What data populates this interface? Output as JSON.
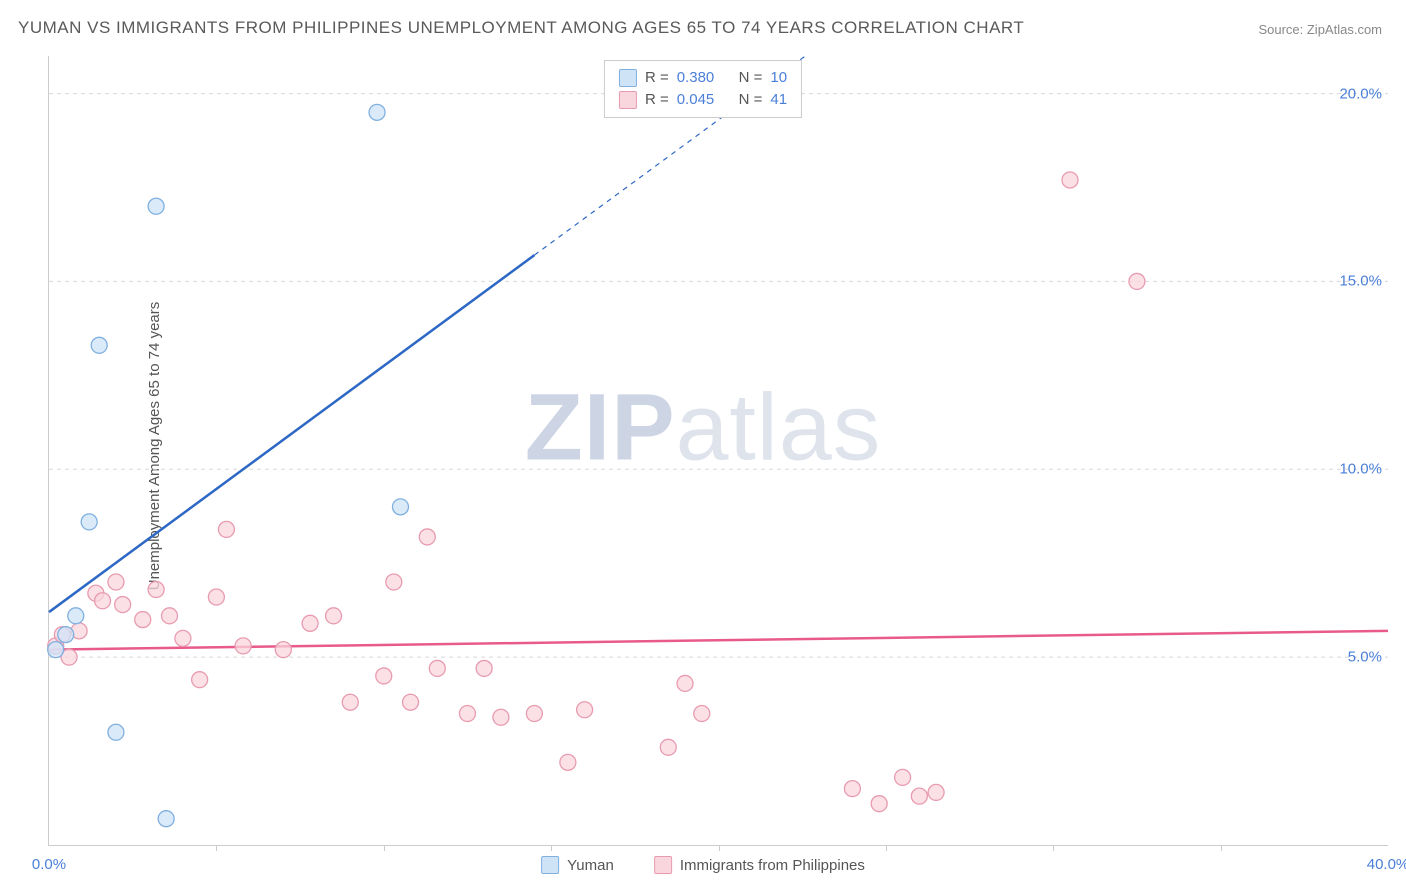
{
  "title": "YUMAN VS IMMIGRANTS FROM PHILIPPINES UNEMPLOYMENT AMONG AGES 65 TO 74 YEARS CORRELATION CHART",
  "source": "Source: ZipAtlas.com",
  "ylabel": "Unemployment Among Ages 65 to 74 years",
  "watermark_a": "ZIP",
  "watermark_b": "atlas",
  "chart": {
    "type": "scatter-with-regression",
    "xlim": [
      0,
      40
    ],
    "ylim": [
      0,
      21
    ],
    "xtick_major": [
      0,
      40
    ],
    "xtick_minor": [
      5,
      10,
      15,
      20,
      25,
      30,
      35
    ],
    "ytick_major": [
      5,
      10,
      15,
      20
    ],
    "ytick_format_suffix": ".0%",
    "grid_dash": "4,4",
    "grid_color": "#d8d8d8",
    "axis_color": "#cccccc",
    "background_color": "#ffffff",
    "tick_label_color": "#4a7fd8",
    "marker_radius": 8
  },
  "series": {
    "a": {
      "label": "Yuman",
      "fill": "#cfe3f7",
      "stroke": "#7fb0e0",
      "line_color": "#2d68c4",
      "R": "0.380",
      "N": "10",
      "regression": {
        "x1": 0,
        "y1": 6.2,
        "x2": 14.5,
        "y2": 15.7,
        "x3": 40,
        "y3": 32.4
      },
      "points": [
        {
          "x": 0.2,
          "y": 5.2
        },
        {
          "x": 0.5,
          "y": 5.6
        },
        {
          "x": 0.8,
          "y": 6.1
        },
        {
          "x": 1.2,
          "y": 8.6
        },
        {
          "x": 1.5,
          "y": 13.3
        },
        {
          "x": 2.0,
          "y": 3.0
        },
        {
          "x": 3.2,
          "y": 17.0
        },
        {
          "x": 3.5,
          "y": 0.7
        },
        {
          "x": 9.8,
          "y": 19.5
        },
        {
          "x": 10.5,
          "y": 9.0
        }
      ]
    },
    "b": {
      "label": "Immigrants from Philippines",
      "fill": "#f9d5dd",
      "stroke": "#e89bb0",
      "line_color": "#e85a8c",
      "R": "0.045",
      "N": "41",
      "regression": {
        "x1": 0,
        "y1": 5.2,
        "x2": 40,
        "y2": 5.7
      },
      "points": [
        {
          "x": 0.2,
          "y": 5.3
        },
        {
          "x": 0.4,
          "y": 5.6
        },
        {
          "x": 0.6,
          "y": 5.0
        },
        {
          "x": 0.9,
          "y": 5.7
        },
        {
          "x": 1.4,
          "y": 6.7
        },
        {
          "x": 1.6,
          "y": 6.5
        },
        {
          "x": 2.0,
          "y": 7.0
        },
        {
          "x": 2.2,
          "y": 6.4
        },
        {
          "x": 2.8,
          "y": 6.0
        },
        {
          "x": 3.2,
          "y": 6.8
        },
        {
          "x": 3.6,
          "y": 6.1
        },
        {
          "x": 4.0,
          "y": 5.5
        },
        {
          "x": 4.5,
          "y": 4.4
        },
        {
          "x": 5.0,
          "y": 6.6
        },
        {
          "x": 5.3,
          "y": 8.4
        },
        {
          "x": 5.8,
          "y": 5.3
        },
        {
          "x": 7.0,
          "y": 5.2
        },
        {
          "x": 7.8,
          "y": 5.9
        },
        {
          "x": 8.5,
          "y": 6.1
        },
        {
          "x": 9.0,
          "y": 3.8
        },
        {
          "x": 10.0,
          "y": 4.5
        },
        {
          "x": 10.3,
          "y": 7.0
        },
        {
          "x": 10.8,
          "y": 3.8
        },
        {
          "x": 11.3,
          "y": 8.2
        },
        {
          "x": 11.6,
          "y": 4.7
        },
        {
          "x": 12.5,
          "y": 3.5
        },
        {
          "x": 13.0,
          "y": 4.7
        },
        {
          "x": 13.5,
          "y": 3.4
        },
        {
          "x": 14.5,
          "y": 3.5
        },
        {
          "x": 15.5,
          "y": 2.2
        },
        {
          "x": 16.0,
          "y": 3.6
        },
        {
          "x": 18.5,
          "y": 2.6
        },
        {
          "x": 19.0,
          "y": 4.3
        },
        {
          "x": 19.5,
          "y": 3.5
        },
        {
          "x": 24.0,
          "y": 1.5
        },
        {
          "x": 24.8,
          "y": 1.1
        },
        {
          "x": 25.5,
          "y": 1.8
        },
        {
          "x": 26.0,
          "y": 1.3
        },
        {
          "x": 26.5,
          "y": 1.4
        },
        {
          "x": 30.5,
          "y": 17.7
        },
        {
          "x": 32.5,
          "y": 15.0
        }
      ]
    }
  },
  "stats_legend": {
    "r_prefix": "R =",
    "n_prefix": "N ="
  }
}
